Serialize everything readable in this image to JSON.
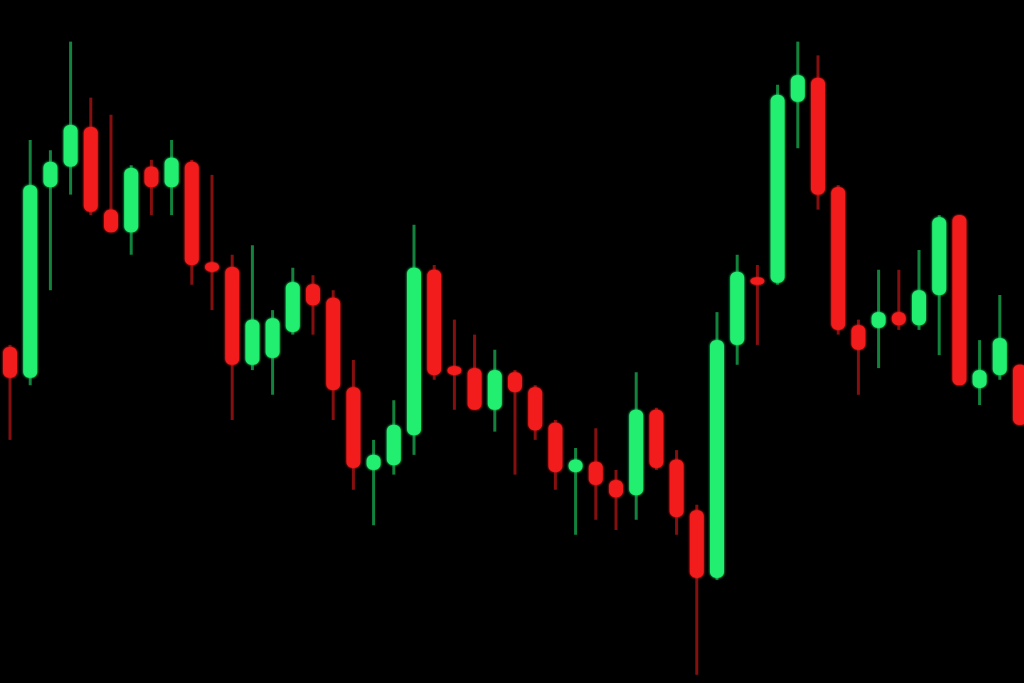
{
  "chart_data": {
    "type": "candlestick",
    "title": "",
    "xlabel": "",
    "ylabel": "",
    "ylim": [
      0,
      100
    ],
    "grid": false,
    "legend": "none",
    "colors": {
      "up": "#22ee70",
      "down": "#f21c1c",
      "background": "#000000"
    },
    "fields": [
      "open",
      "high",
      "low",
      "close"
    ],
    "candles": [
      [
        49.2,
        49.5,
        35.6,
        44.7
      ],
      [
        44.7,
        79.5,
        43.6,
        72.9
      ],
      [
        72.6,
        78,
        57.5,
        76.3
      ],
      [
        75.6,
        93.9,
        71.5,
        81.7
      ],
      [
        81.4,
        85.7,
        68.5,
        69
      ],
      [
        69.3,
        83.2,
        66,
        66
      ],
      [
        66,
        75.8,
        62.7,
        75.4
      ],
      [
        75.6,
        76.6,
        68.5,
        72.6
      ],
      [
        72.6,
        79.5,
        68.5,
        76.9
      ],
      [
        76.3,
        76.6,
        58.3,
        61.2
      ],
      [
        61.6,
        74.4,
        54.6,
        60.2
      ],
      [
        60.9,
        62.7,
        38.5,
        46.6
      ],
      [
        46.6,
        64.1,
        45.8,
        53.2
      ],
      [
        47.6,
        54.6,
        42.2,
        53.4
      ],
      [
        51.4,
        60.8,
        51,
        58.7
      ],
      [
        58.4,
        59.7,
        51,
        55.3
      ],
      [
        56.4,
        57.5,
        38.5,
        42.9
      ],
      [
        43.3,
        47.3,
        28.3,
        31.5
      ],
      [
        31.2,
        35.6,
        23.1,
        33.4
      ],
      [
        31.9,
        41.4,
        30.5,
        37.8
      ],
      [
        36.3,
        67.1,
        33.4,
        60.8
      ],
      [
        60.5,
        61.2,
        44.4,
        45.1
      ],
      [
        46.4,
        53.2,
        40,
        45.1
      ],
      [
        46.1,
        51,
        40,
        40
      ],
      [
        40,
        48.8,
        36.8,
        45.8
      ],
      [
        45.5,
        45.8,
        30.5,
        42.6
      ],
      [
        43.3,
        43.6,
        35.6,
        37
      ],
      [
        38.1,
        38.5,
        28.3,
        30.9
      ],
      [
        30.9,
        34.4,
        21.7,
        32.7
      ],
      [
        32.4,
        37.3,
        23.9,
        29
      ],
      [
        29.7,
        31.2,
        22.4,
        27.2
      ],
      [
        27.5,
        45.5,
        23.9,
        40
      ],
      [
        40,
        40.3,
        31.2,
        31.5
      ],
      [
        32.7,
        34.1,
        21.7,
        24.3
      ],
      [
        25.3,
        26.1,
        1.2,
        15.4
      ],
      [
        15.4,
        54.3,
        15.1,
        50.2
      ],
      [
        49.5,
        62.7,
        46.6,
        60.2
      ],
      [
        59.4,
        61.2,
        49.5,
        58.3
      ],
      [
        58.6,
        87.6,
        58.3,
        86.1
      ],
      [
        85.1,
        93.9,
        78.3,
        89
      ],
      [
        88.6,
        91.9,
        69.3,
        71.5
      ],
      [
        72.6,
        72.9,
        51,
        51.7
      ],
      [
        52.4,
        53.2,
        42.2,
        48.8
      ],
      [
        52,
        60.5,
        46.1,
        54.3
      ],
      [
        54.3,
        60.5,
        51.7,
        52.4
      ],
      [
        52.4,
        63.4,
        51.7,
        57.5
      ],
      [
        56.8,
        68.5,
        48,
        68.2
      ],
      [
        68.5,
        68.5,
        43.6,
        43.6
      ],
      [
        43.2,
        50.2,
        40.7,
        45.8
      ],
      [
        45.1,
        56.8,
        44.4,
        50.5
      ],
      [
        46.6,
        46.6,
        37.8,
        37.8
      ]
    ]
  }
}
